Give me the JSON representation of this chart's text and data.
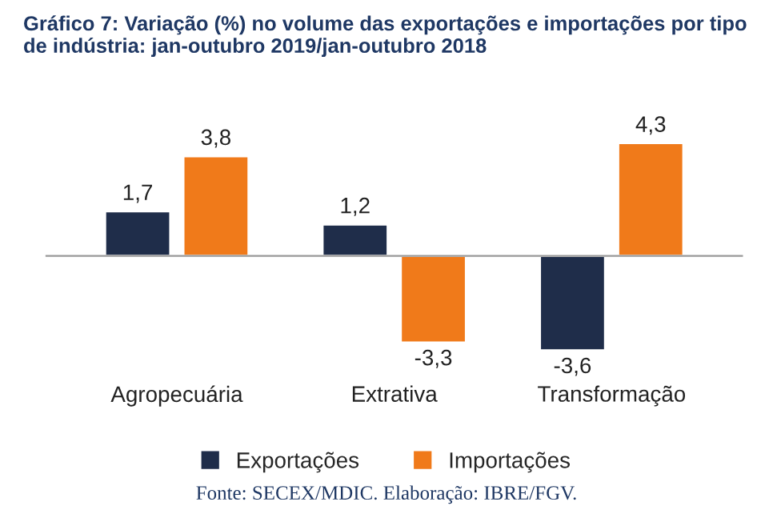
{
  "chart_data": {
    "type": "bar",
    "title": "Gráfico 7: Variação (%) no volume das exportações e importações por tipo de indústria: jan-outubro 2019/jan-outubro 2018",
    "categories": [
      "Agropecuária",
      "Extrativa",
      "Transformação"
    ],
    "series": [
      {
        "name": "Exportações",
        "color": "#1f2d4a",
        "values": [
          1.7,
          1.2,
          -3.6
        ],
        "value_labels": [
          "1,7",
          "1,2",
          "-3,6"
        ]
      },
      {
        "name": "Importações",
        "color": "#f07a1a",
        "values": [
          3.8,
          -3.3,
          4.3
        ],
        "value_labels": [
          "3,8",
          "-3,3",
          "4,3"
        ]
      }
    ],
    "legend": "bottom",
    "annotations": [
      "Fonte: SECEX/MDIC. Elaboração: IBRE/FGV."
    ]
  }
}
